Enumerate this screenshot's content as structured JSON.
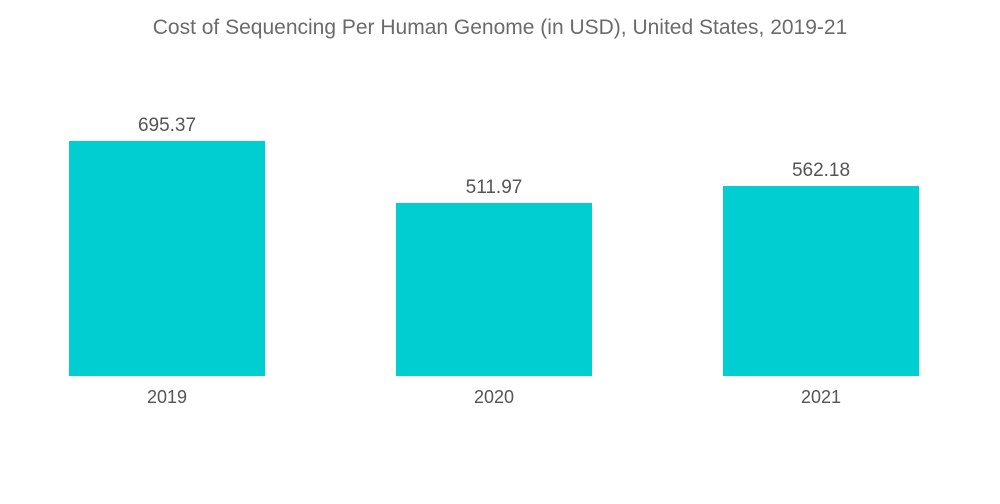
{
  "chart_data": {
    "type": "bar",
    "title": "Cost of Sequencing Per Human Genome (in USD), United States, 2019-21",
    "categories": [
      "2019",
      "2020",
      "2021"
    ],
    "values": [
      695.37,
      511.97,
      562.18
    ],
    "value_labels": [
      "695.37",
      "511.97",
      "562.18"
    ],
    "xlabel": "",
    "ylabel": "",
    "ylim": [
      0,
      695.37
    ],
    "grid": false,
    "legend": "none",
    "bar_color": "#00CED1",
    "text_color": "#555555"
  }
}
